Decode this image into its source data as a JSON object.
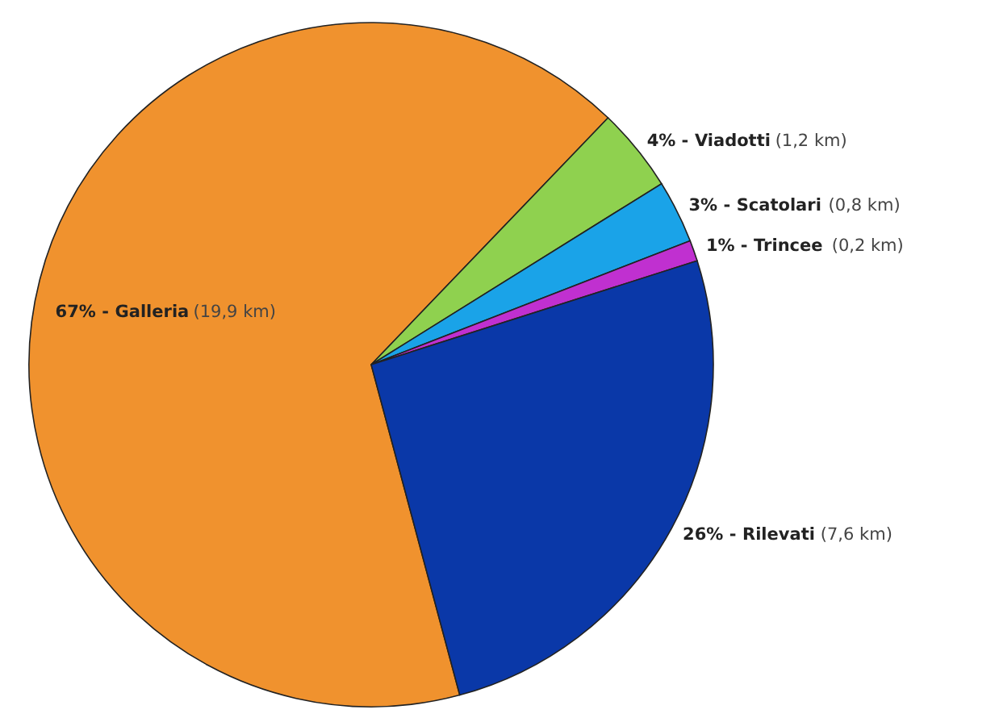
{
  "chart_data": {
    "type": "pie",
    "categories": [
      "Galleria",
      "Viadotti",
      "Scatolari",
      "Trincee",
      "Rilevati"
    ],
    "values": [
      67,
      4,
      3,
      1,
      26
    ],
    "colors": [
      "#f0922e",
      "#8fd14f",
      "#1aa3e8",
      "#c030d0",
      "#0a38a8"
    ],
    "value_labels": [
      "67% -",
      "4% -",
      "3% -",
      "1% -",
      "26% -"
    ],
    "annotations": [
      "(19,9 km)",
      "(1,2 km)",
      "(0,8 km)",
      "(0,2 km)",
      "(7,6 km)"
    ]
  }
}
